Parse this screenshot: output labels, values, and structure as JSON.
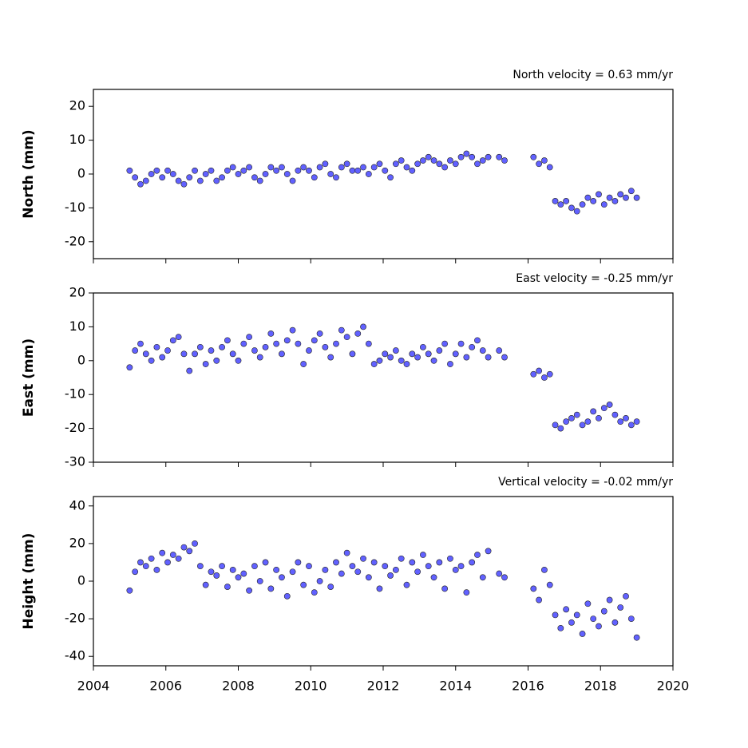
{
  "chart_data": [
    {
      "type": "scatter",
      "title": "North velocity = 0.63 mm/yr",
      "y_label": "North (mm)",
      "color": "#5050ff",
      "x": [
        2005.0,
        2005.15,
        2005.3,
        2005.45,
        2005.6,
        2005.75,
        2005.9,
        2006.05,
        2006.2,
        2006.35,
        2006.5,
        2006.65,
        2006.8,
        2006.95,
        2007.1,
        2007.25,
        2007.4,
        2007.55,
        2007.7,
        2007.85,
        2008.0,
        2008.15,
        2008.3,
        2008.45,
        2008.6,
        2008.75,
        2008.9,
        2009.05,
        2009.2,
        2009.35,
        2009.5,
        2009.65,
        2009.8,
        2009.95,
        2010.1,
        2010.25,
        2010.4,
        2010.55,
        2010.7,
        2010.85,
        2011.0,
        2011.15,
        2011.3,
        2011.45,
        2011.6,
        2011.75,
        2011.9,
        2012.05,
        2012.2,
        2012.35,
        2012.5,
        2012.65,
        2012.8,
        2012.95,
        2013.1,
        2013.25,
        2013.4,
        2013.55,
        2013.7,
        2013.85,
        2014.0,
        2014.15,
        2014.3,
        2014.45,
        2014.6,
        2014.75,
        2014.9,
        2015.2,
        2015.35,
        2016.15,
        2016.3,
        2016.45,
        2016.6,
        2016.75,
        2016.9,
        2017.05,
        2017.2,
        2017.35,
        2017.5,
        2017.65,
        2017.8,
        2017.95,
        2018.1,
        2018.25,
        2018.4,
        2018.55,
        2018.7,
        2018.85,
        2019.0
      ],
      "values": [
        1,
        -1,
        -3,
        -2,
        0,
        1,
        -1,
        1,
        0,
        -2,
        -3,
        -1,
        1,
        -2,
        0,
        1,
        -2,
        -1,
        1,
        2,
        0,
        1,
        2,
        -1,
        -2,
        0,
        2,
        1,
        2,
        0,
        -2,
        1,
        2,
        1,
        -1,
        2,
        3,
        0,
        -1,
        2,
        3,
        1,
        1,
        2,
        0,
        2,
        3,
        1,
        -1,
        3,
        4,
        2,
        1,
        3,
        4,
        5,
        4,
        3,
        2,
        4,
        3,
        5,
        6,
        5,
        3,
        4,
        5,
        5,
        4,
        5,
        3,
        4,
        2,
        -8,
        -9,
        -8,
        -10,
        -11,
        -9,
        -7,
        -8,
        -6,
        -9,
        -7,
        -8,
        -6,
        -7,
        -5,
        -7
      ],
      "xlim": [
        2004,
        2020
      ],
      "xticks": [
        2004,
        2006,
        2008,
        2010,
        2012,
        2014,
        2016,
        2018,
        2020
      ],
      "xtick_labels": false,
      "ylim": [
        -25,
        25
      ],
      "yticks": [
        -20,
        -10,
        0,
        10,
        20
      ]
    },
    {
      "type": "scatter",
      "title": "East velocity = -0.25 mm/yr",
      "y_label": "East (mm)",
      "color": "#5050ff",
      "x": [
        2005.0,
        2005.15,
        2005.3,
        2005.45,
        2005.6,
        2005.75,
        2005.9,
        2006.05,
        2006.2,
        2006.35,
        2006.5,
        2006.65,
        2006.8,
        2006.95,
        2007.1,
        2007.25,
        2007.4,
        2007.55,
        2007.7,
        2007.85,
        2008.0,
        2008.15,
        2008.3,
        2008.45,
        2008.6,
        2008.75,
        2008.9,
        2009.05,
        2009.2,
        2009.35,
        2009.5,
        2009.65,
        2009.8,
        2009.95,
        2010.1,
        2010.25,
        2010.4,
        2010.55,
        2010.7,
        2010.85,
        2011.0,
        2011.15,
        2011.3,
        2011.45,
        2011.6,
        2011.75,
        2011.9,
        2012.05,
        2012.2,
        2012.35,
        2012.5,
        2012.65,
        2012.8,
        2012.95,
        2013.1,
        2013.25,
        2013.4,
        2013.55,
        2013.7,
        2013.85,
        2014.0,
        2014.15,
        2014.3,
        2014.45,
        2014.6,
        2014.75,
        2014.9,
        2015.2,
        2015.35,
        2016.15,
        2016.3,
        2016.45,
        2016.6,
        2016.75,
        2016.9,
        2017.05,
        2017.2,
        2017.35,
        2017.5,
        2017.65,
        2017.8,
        2017.95,
        2018.1,
        2018.25,
        2018.4,
        2018.55,
        2018.7,
        2018.85,
        2019.0
      ],
      "values": [
        -2,
        3,
        5,
        2,
        0,
        4,
        1,
        3,
        6,
        7,
        2,
        -3,
        2,
        4,
        -1,
        3,
        0,
        4,
        6,
        2,
        0,
        5,
        7,
        3,
        1,
        4,
        8,
        5,
        2,
        6,
        9,
        5,
        -1,
        3,
        6,
        8,
        4,
        1,
        5,
        9,
        7,
        2,
        8,
        10,
        5,
        -1,
        0,
        2,
        1,
        3,
        0,
        -1,
        2,
        1,
        4,
        2,
        0,
        3,
        5,
        -1,
        2,
        5,
        1,
        4,
        6,
        3,
        1,
        3,
        1,
        -4,
        -3,
        -5,
        -4,
        -19,
        -20,
        -18,
        -17,
        -16,
        -19,
        -18,
        -15,
        -17,
        -14,
        -13,
        -16,
        -18,
        -17,
        -19,
        -18
      ],
      "xlim": [
        2004,
        2020
      ],
      "xticks": [
        2004,
        2006,
        2008,
        2010,
        2012,
        2014,
        2016,
        2018,
        2020
      ],
      "xtick_labels": false,
      "ylim": [
        -30,
        20
      ],
      "yticks": [
        -30,
        -20,
        -10,
        0,
        10,
        20
      ]
    },
    {
      "type": "scatter",
      "title": "Vertical velocity = -0.02 mm/yr",
      "y_label": "Height (mm)",
      "color": "#5050ff",
      "x": [
        2005.0,
        2005.15,
        2005.3,
        2005.45,
        2005.6,
        2005.75,
        2005.9,
        2006.05,
        2006.2,
        2006.35,
        2006.5,
        2006.65,
        2006.8,
        2006.95,
        2007.1,
        2007.25,
        2007.4,
        2007.55,
        2007.7,
        2007.85,
        2008.0,
        2008.15,
        2008.3,
        2008.45,
        2008.6,
        2008.75,
        2008.9,
        2009.05,
        2009.2,
        2009.35,
        2009.5,
        2009.65,
        2009.8,
        2009.95,
        2010.1,
        2010.25,
        2010.4,
        2010.55,
        2010.7,
        2010.85,
        2011.0,
        2011.15,
        2011.3,
        2011.45,
        2011.6,
        2011.75,
        2011.9,
        2012.05,
        2012.2,
        2012.35,
        2012.5,
        2012.65,
        2012.8,
        2012.95,
        2013.1,
        2013.25,
        2013.4,
        2013.55,
        2013.7,
        2013.85,
        2014.0,
        2014.15,
        2014.3,
        2014.45,
        2014.6,
        2014.75,
        2014.9,
        2015.2,
        2015.35,
        2016.15,
        2016.3,
        2016.45,
        2016.6,
        2016.75,
        2016.9,
        2017.05,
        2017.2,
        2017.35,
        2017.5,
        2017.65,
        2017.8,
        2017.95,
        2018.1,
        2018.25,
        2018.4,
        2018.55,
        2018.7,
        2018.85,
        2019.0
      ],
      "values": [
        -5,
        5,
        10,
        8,
        12,
        6,
        15,
        10,
        14,
        12,
        18,
        16,
        20,
        8,
        -2,
        5,
        3,
        8,
        -3,
        6,
        2,
        4,
        -5,
        8,
        0,
        10,
        -4,
        6,
        2,
        -8,
        5,
        10,
        -2,
        8,
        -6,
        0,
        6,
        -3,
        10,
        4,
        15,
        8,
        5,
        12,
        2,
        10,
        -4,
        8,
        3,
        6,
        12,
        -2,
        10,
        5,
        14,
        8,
        2,
        10,
        -4,
        12,
        6,
        8,
        -6,
        10,
        14,
        2,
        16,
        4,
        2,
        -4,
        -10,
        6,
        -2,
        -18,
        -25,
        -15,
        -22,
        -18,
        -28,
        -12,
        -20,
        -24,
        -16,
        -10,
        -22,
        -14,
        -8,
        -20,
        -30
      ],
      "xlim": [
        2004,
        2020
      ],
      "xticks": [
        2004,
        2006,
        2008,
        2010,
        2012,
        2014,
        2016,
        2018,
        2020
      ],
      "xtick_labels": true,
      "ylim": [
        -45,
        45
      ],
      "yticks": [
        -40,
        -20,
        0,
        20,
        40
      ]
    }
  ]
}
